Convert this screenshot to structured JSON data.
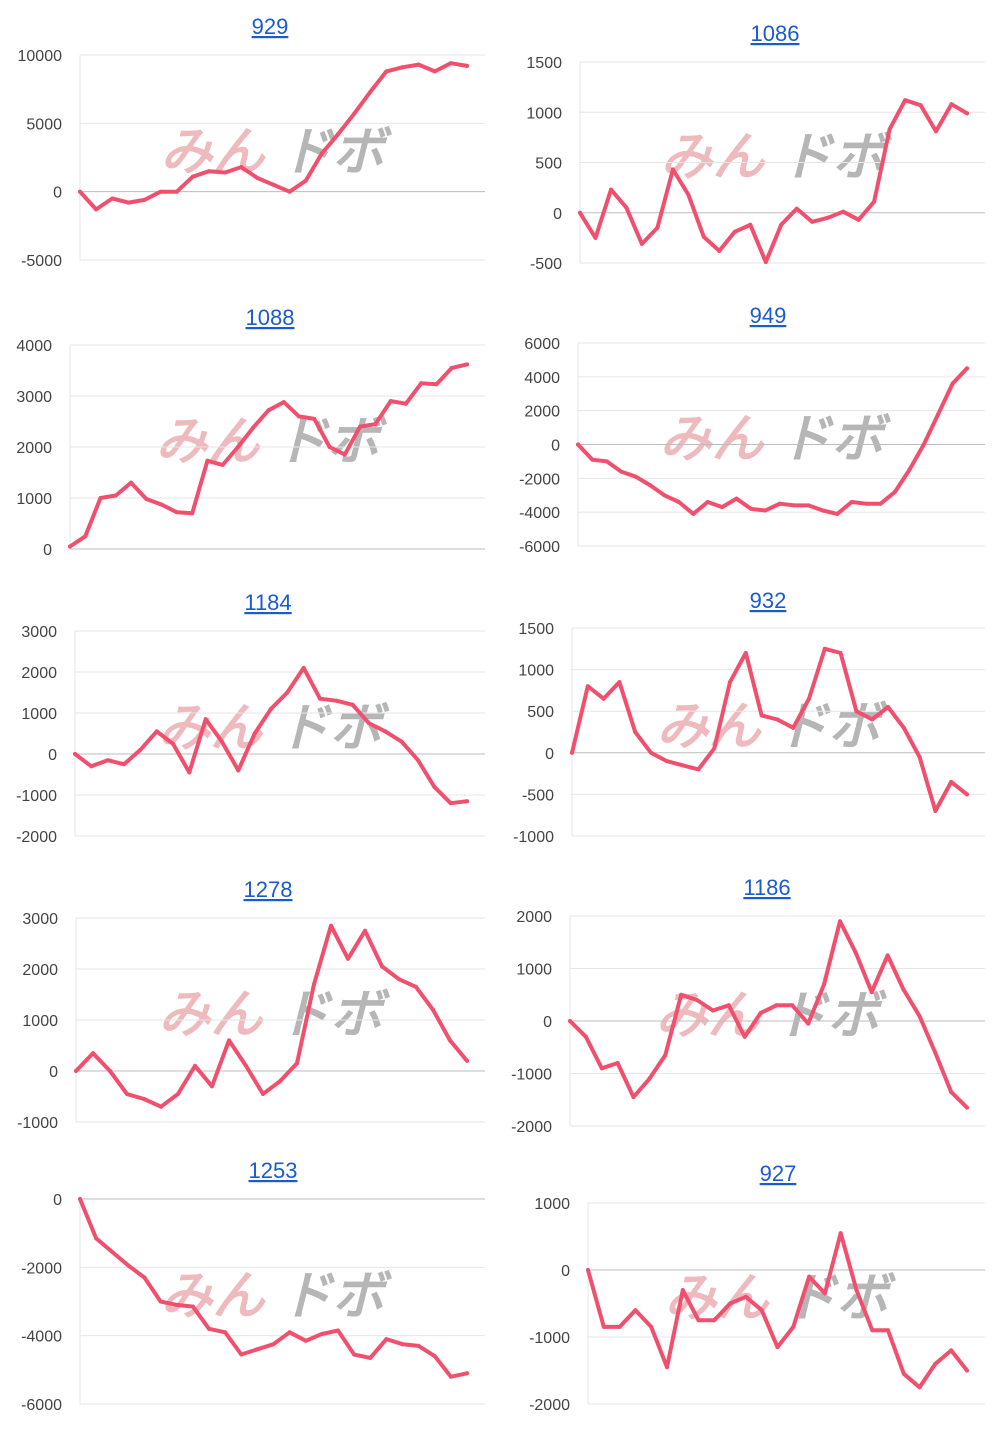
{
  "watermark": {
    "part1": "みん",
    "part2": "ドボ"
  },
  "colors": {
    "line": "#f0506e",
    "title": "#1a5bd0"
  },
  "chart_data": [
    {
      "type": "line",
      "title": "929",
      "yticks": [
        "10000",
        "5000",
        "0",
        "-5000"
      ],
      "ylim": [
        -5000,
        10000
      ],
      "values": [
        0,
        -1300,
        -500,
        -800,
        -600,
        0,
        0,
        1100,
        1500,
        1400,
        1800,
        1000,
        500,
        0,
        800,
        2800,
        4200,
        5700,
        7300,
        8800,
        9100,
        9300,
        8800,
        9400,
        9200
      ]
    },
    {
      "type": "line",
      "title": "1086",
      "yticks": [
        "1500",
        "1000",
        "500",
        "0",
        "-500"
      ],
      "ylim": [
        -500,
        1500
      ],
      "values": [
        0,
        -250,
        230,
        50,
        -310,
        -150,
        430,
        180,
        -240,
        -380,
        -190,
        -120,
        -490,
        -120,
        40,
        -90,
        -50,
        10,
        -70,
        110,
        830,
        1120,
        1070,
        810,
        1080,
        990
      ]
    },
    {
      "type": "line",
      "title": "1088",
      "yticks": [
        "4000",
        "3000",
        "2000",
        "1000",
        "0"
      ],
      "ylim": [
        0,
        4000
      ],
      "values": [
        50,
        250,
        1000,
        1050,
        1300,
        980,
        870,
        720,
        700,
        1730,
        1650,
        2000,
        2380,
        2720,
        2880,
        2600,
        2550,
        2000,
        1850,
        2400,
        2450,
        2900,
        2850,
        3250,
        3230,
        3550,
        3620
      ]
    },
    {
      "type": "line",
      "title": "949",
      "yticks": [
        "6000",
        "4000",
        "2000",
        "0",
        "-2000",
        "-4000",
        "-6000"
      ],
      "ylim": [
        -6000,
        6000
      ],
      "values": [
        0,
        -900,
        -1000,
        -1600,
        -1900,
        -2400,
        -3000,
        -3400,
        -4100,
        -3400,
        -3700,
        -3200,
        -3800,
        -3900,
        -3500,
        -3600,
        -3600,
        -3900,
        -4100,
        -3400,
        -3500,
        -3500,
        -2800,
        -1500,
        0,
        1800,
        3600,
        4500
      ]
    },
    {
      "type": "line",
      "title": "1184",
      "yticks": [
        "3000",
        "2000",
        "1000",
        "0",
        "-1000",
        "-2000"
      ],
      "ylim": [
        -2000,
        3000
      ],
      "values": [
        0,
        -300,
        -150,
        -250,
        100,
        550,
        250,
        -450,
        850,
        300,
        -400,
        500,
        1100,
        1500,
        2100,
        1350,
        1300,
        1200,
        750,
        550,
        300,
        -150,
        -800,
        -1200,
        -1150
      ]
    },
    {
      "type": "line",
      "title": "932",
      "yticks": [
        "1500",
        "1000",
        "500",
        "0",
        "-500",
        "-1000"
      ],
      "ylim": [
        -1000,
        1500
      ],
      "values": [
        0,
        800,
        650,
        850,
        250,
        0,
        -100,
        -150,
        -200,
        50,
        850,
        1200,
        450,
        400,
        300,
        650,
        1250,
        1200,
        500,
        400,
        550,
        300,
        -50,
        -700,
        -350,
        -500
      ]
    },
    {
      "type": "line",
      "title": "1278",
      "yticks": [
        "3000",
        "2000",
        "1000",
        "0",
        "-1000"
      ],
      "ylim": [
        -1000,
        3000
      ],
      "values": [
        0,
        350,
        0,
        -450,
        -550,
        -700,
        -450,
        100,
        -300,
        600,
        100,
        -450,
        -200,
        150,
        1700,
        2850,
        2200,
        2750,
        2050,
        1800,
        1650,
        1200,
        600,
        200
      ]
    },
    {
      "type": "line",
      "title": "1186",
      "yticks": [
        "2000",
        "1000",
        "0",
        "-1000",
        "-2000"
      ],
      "ylim": [
        -2000,
        2000
      ],
      "values": [
        0,
        -300,
        -900,
        -800,
        -1450,
        -1100,
        -650,
        500,
        400,
        200,
        300,
        -300,
        150,
        300,
        300,
        -50,
        700,
        1900,
        1300,
        550,
        1250,
        600,
        100,
        -600,
        -1350,
        -1650
      ]
    },
    {
      "type": "line",
      "title": "1253",
      "yticks": [
        "0",
        "-2000",
        "-4000",
        "-6000"
      ],
      "ylim": [
        -6000,
        0
      ],
      "values": [
        0,
        -1150,
        -1550,
        -1950,
        -2300,
        -3000,
        -3100,
        -3150,
        -3800,
        -3900,
        -4550,
        -4400,
        -4250,
        -3900,
        -4150,
        -3950,
        -3850,
        -4550,
        -4650,
        -4100,
        -4250,
        -4300,
        -4600,
        -5200,
        -5100
      ]
    },
    {
      "type": "line",
      "title": "927",
      "yticks": [
        "1000",
        "0",
        "-1000",
        "-2000"
      ],
      "ylim": [
        -2000,
        1000
      ],
      "values": [
        0,
        -850,
        -850,
        -600,
        -850,
        -1450,
        -300,
        -750,
        -750,
        -500,
        -400,
        -600,
        -1150,
        -850,
        -100,
        -350,
        550,
        -300,
        -900,
        -900,
        -1550,
        -1750,
        -1400,
        -1200,
        -1500
      ]
    }
  ]
}
